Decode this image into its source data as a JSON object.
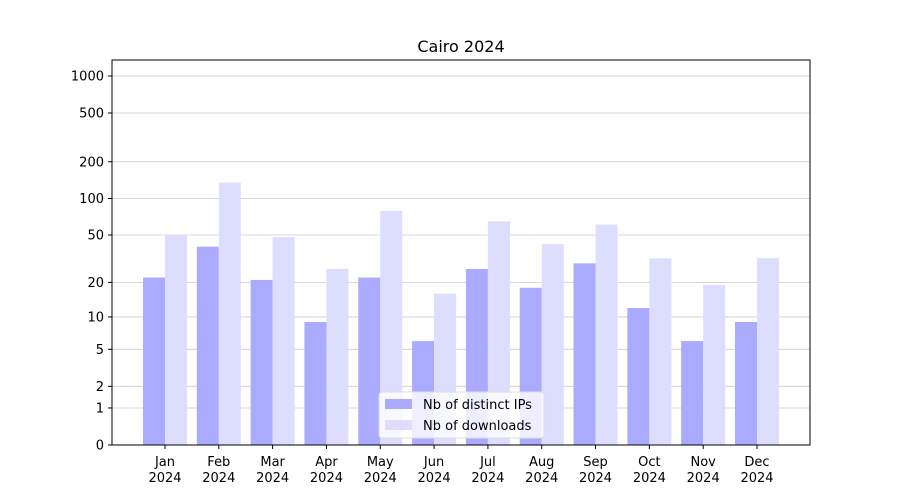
{
  "chart_data": {
    "type": "bar",
    "title": "Cairo 2024",
    "categories": [
      "Jan 2024",
      "Feb 2024",
      "Mar 2024",
      "Apr 2024",
      "May 2024",
      "Jun 2024",
      "Jul 2024",
      "Aug 2024",
      "Sep 2024",
      "Oct 2024",
      "Nov 2024",
      "Dec 2024"
    ],
    "series": [
      {
        "name": "Nb of distinct IPs",
        "color": "#aaaaff",
        "values": [
          22,
          40,
          21,
          9,
          22,
          6,
          26,
          18,
          29,
          12,
          6,
          9
        ]
      },
      {
        "name": "Nb of downloads",
        "color": "#ddddff",
        "values": [
          50,
          135,
          48,
          26,
          79,
          16,
          65,
          42,
          61,
          32,
          19,
          32
        ]
      }
    ],
    "yscale": "log1p",
    "ylim": [
      0,
      1350
    ],
    "yticks": [
      0,
      1,
      2,
      5,
      10,
      20,
      50,
      100,
      200,
      500,
      1000
    ],
    "grid": true,
    "legend": "lower center"
  }
}
